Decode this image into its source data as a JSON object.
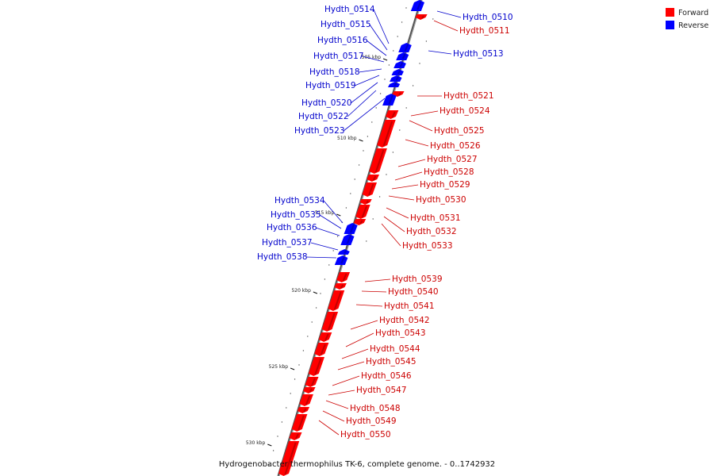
{
  "caption": "Hydrogenobacter thermophilus TK-6, complete genome. - 0..1742932",
  "legend": [
    {
      "label": "Forward",
      "color": "#ff0000"
    },
    {
      "label": "Reverse",
      "color": "#0000ff"
    }
  ],
  "colors": {
    "forward": "#ff0000",
    "reverse": "#0000ff",
    "forward_dark": "#9b0000",
    "reverse_dark": "#00009b",
    "line": "#808080"
  },
  "ticks": [
    "505 kbp",
    "510 kbp",
    "515 kbp",
    "520 kbp",
    "525 kbp",
    "530 kbp"
  ],
  "reverse_genes": [
    "Hydth_0510",
    "Hydth_0513",
    "Hydth_0514",
    "Hydth_0515",
    "Hydth_0516",
    "Hydth_0517",
    "Hydth_0518",
    "Hydth_0519",
    "Hydth_0520",
    "Hydth_0522",
    "Hydth_0523",
    "Hydth_0534",
    "Hydth_0535",
    "Hydth_0536",
    "Hydth_0537",
    "Hydth_0538"
  ],
  "forward_genes": [
    "Hydth_0511",
    "Hydth_0521",
    "Hydth_0524",
    "Hydth_0525",
    "Hydth_0526",
    "Hydth_0527",
    "Hydth_0528",
    "Hydth_0529",
    "Hydth_0530",
    "Hydth_0531",
    "Hydth_0532",
    "Hydth_0533",
    "Hydth_0539",
    "Hydth_0540",
    "Hydth_0541",
    "Hydth_0542",
    "Hydth_0543",
    "Hydth_0544",
    "Hydth_0545",
    "Hydth_0546",
    "Hydth_0547",
    "Hydth_0548",
    "Hydth_0549",
    "Hydth_0550"
  ]
}
